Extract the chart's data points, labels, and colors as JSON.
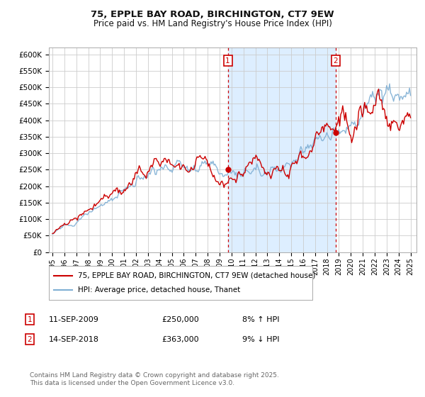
{
  "title": "75, EPPLE BAY ROAD, BIRCHINGTON, CT7 9EW",
  "subtitle": "Price paid vs. HM Land Registry's House Price Index (HPI)",
  "ylabel_ticks": [
    "£0",
    "£50K",
    "£100K",
    "£150K",
    "£200K",
    "£250K",
    "£300K",
    "£350K",
    "£400K",
    "£450K",
    "£500K",
    "£550K",
    "£600K"
  ],
  "ytick_values": [
    0,
    50000,
    100000,
    150000,
    200000,
    250000,
    300000,
    350000,
    400000,
    450000,
    500000,
    550000,
    600000
  ],
  "ylim": [
    0,
    620000
  ],
  "xlim_start": 1994.7,
  "xlim_end": 2025.5,
  "xticks": [
    1995,
    1996,
    1997,
    1998,
    1999,
    2000,
    2001,
    2002,
    2003,
    2004,
    2005,
    2006,
    2007,
    2008,
    2009,
    2010,
    2011,
    2012,
    2013,
    2014,
    2015,
    2016,
    2017,
    2018,
    2019,
    2020,
    2021,
    2022,
    2023,
    2024,
    2025
  ],
  "sale1_x": 2009.69,
  "sale1_y": 250000,
  "sale1_label": "1",
  "sale2_x": 2018.71,
  "sale2_y": 363000,
  "sale2_label": "2",
  "sale_color": "#cc0000",
  "vline_color": "#cc0000",
  "shade_color": "#ddeeff",
  "hpi_line_color": "#7fafd4",
  "price_line_color": "#cc0000",
  "legend_label1": "75, EPPLE BAY ROAD, BIRCHINGTON, CT7 9EW (detached house)",
  "legend_label2": "HPI: Average price, detached house, Thanet",
  "annotation1_date": "11-SEP-2009",
  "annotation1_price": "£250,000",
  "annotation1_pct": "8% ↑ HPI",
  "annotation2_date": "14-SEP-2018",
  "annotation2_price": "£363,000",
  "annotation2_pct": "9% ↓ HPI",
  "footer": "Contains HM Land Registry data © Crown copyright and database right 2025.\nThis data is licensed under the Open Government Licence v3.0.",
  "bg_color": "#ffffff",
  "grid_color": "#cccccc"
}
